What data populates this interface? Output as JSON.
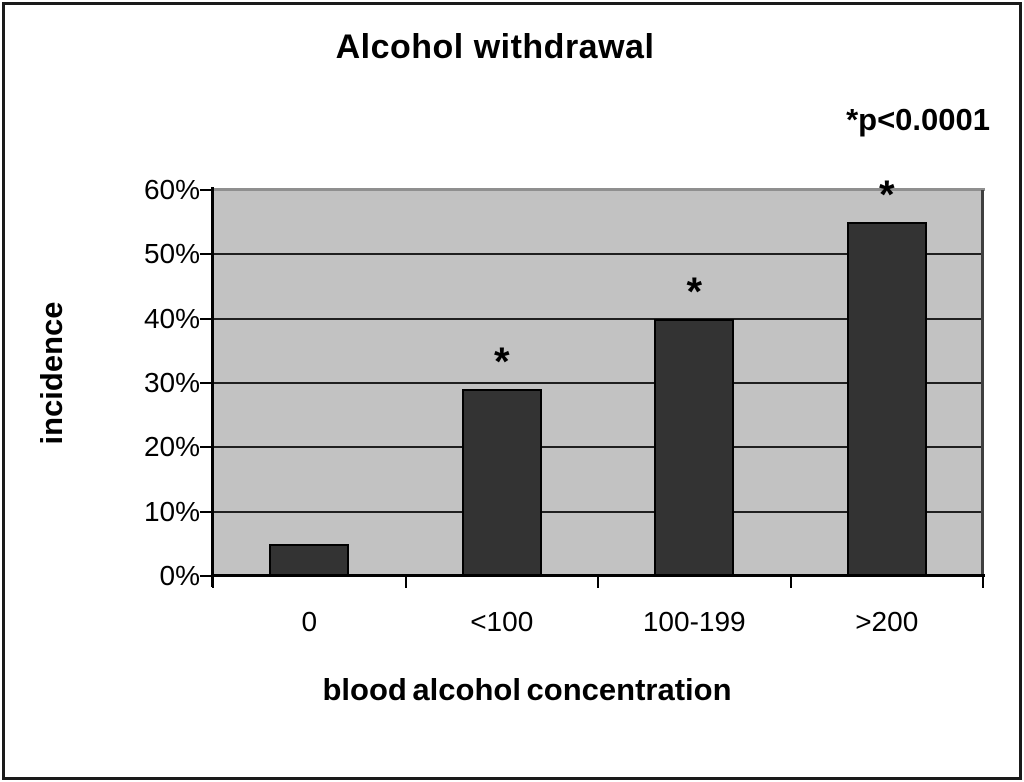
{
  "chart_data": {
    "type": "bar",
    "title": "Alcohol withdrawal",
    "annotation": "*p<0.0001",
    "xlabel": "blood alcohol concentration",
    "ylabel": "incidence",
    "categories": [
      "0",
      "<100",
      "100-199",
      ">200"
    ],
    "values": [
      5,
      29,
      40,
      55
    ],
    "values_unit": "%",
    "significant": [
      false,
      true,
      true,
      true
    ],
    "significance_marker": "*",
    "ylim": [
      0,
      60
    ],
    "ytick_step": 10,
    "ytick_labels": [
      "0%",
      "10%",
      "20%",
      "30%",
      "40%",
      "50%",
      "60%"
    ],
    "grid": true,
    "legend": "none",
    "colors": {
      "background": "#ffffff",
      "outer_border": "#1a1a1a",
      "plot_bg": "#c2c2c2",
      "plot_top_border": "#8f8f8f",
      "plot_right_border": "#3f3f3f",
      "gridline": "#1f1f1f",
      "axis": "#000000",
      "bar_fill": "#333333",
      "bar_border": "#000000",
      "text": "#000000"
    }
  }
}
